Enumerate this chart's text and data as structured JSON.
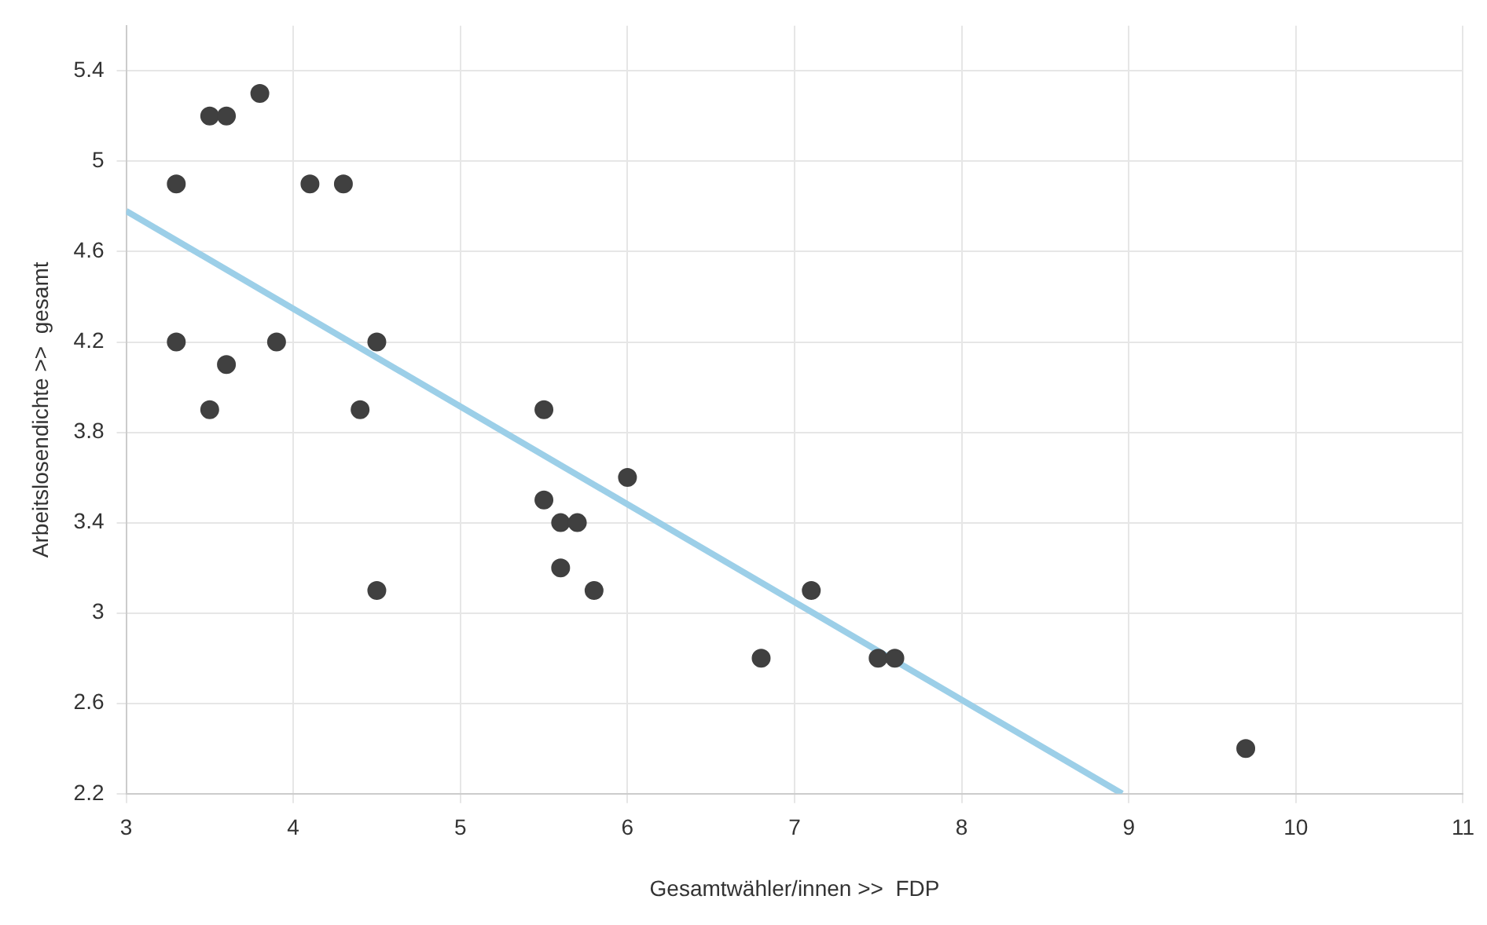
{
  "chart_data": {
    "type": "scatter",
    "xlabel": "Gesamtwähler/innen >>  FDP",
    "ylabel": "Arbeitslosendichte >>  gesamt",
    "xlim": [
      3,
      11
    ],
    "xticks": [
      3,
      4,
      5,
      6,
      7,
      8,
      9,
      10,
      11
    ],
    "ylim": [
      2.2,
      5.6
    ],
    "yticks": [
      2.2,
      2.6,
      3,
      3.4,
      3.8,
      4.2,
      4.6,
      5,
      5.4
    ],
    "grid": true,
    "series": [
      {
        "marker": "circle",
        "color": "#404040",
        "x": [
          3.3,
          3.3,
          3.5,
          3.6,
          3.8,
          3.5,
          3.6,
          3.9,
          4.1,
          4.3,
          4.5,
          4.4,
          4.5,
          5.5,
          5.5,
          5.6,
          5.7,
          5.6,
          5.8,
          6.0,
          6.8,
          7.1,
          7.5,
          7.6,
          9.7
        ],
        "values": [
          4.9,
          4.2,
          5.2,
          5.2,
          5.3,
          3.9,
          4.1,
          4.2,
          4.9,
          4.9,
          4.2,
          3.9,
          3.1,
          3.9,
          3.5,
          3.4,
          3.4,
          3.2,
          3.1,
          3.6,
          2.8,
          3.1,
          2.8,
          2.8,
          2.4
        ]
      },
      {
        "type": "line",
        "color": "#9ccfe8",
        "x": [
          3,
          8.96
        ],
        "values": [
          4.78,
          2.2
        ]
      }
    ]
  }
}
